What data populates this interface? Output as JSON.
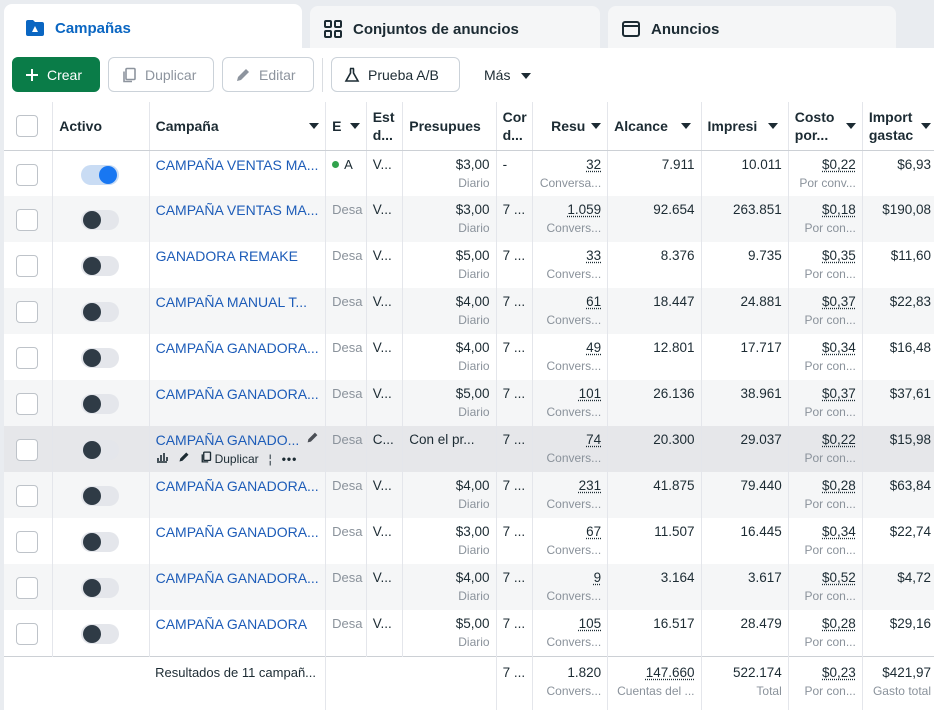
{
  "tabs": [
    {
      "label": "Campañas",
      "icon": "folder-icon"
    },
    {
      "label": "Conjuntos de anuncios",
      "icon": "grid-icon"
    },
    {
      "label": "Anuncios",
      "icon": "ad-window-icon"
    }
  ],
  "toolbar": {
    "create": "Crear",
    "duplicate": "Duplicar",
    "edit": "Editar",
    "ab_test": "Prueba A/B",
    "more": "Más"
  },
  "columns": {
    "active": "Activo",
    "campaign": "Campaña",
    "delivery": "E",
    "strategy": "Est d...",
    "budget": "Presupues",
    "attribution": "Cor d...",
    "results": "Resu",
    "reach": "Alcance",
    "impressions": "Impresi",
    "cost": "Costo por...",
    "spent": "Import gastac"
  },
  "rows": [
    {
      "on": true,
      "name": "CAMPAÑA VENTAS MA...",
      "delivery": "A",
      "strategy": "V...",
      "budget": "$3,00",
      "budget_sub": "Diario",
      "attr": "-",
      "results": "32",
      "results_sub": "Conversa...",
      "reach": "7.911",
      "impressions": "10.011",
      "cost": "$0,22",
      "cost_sub": "Por conv...",
      "spent": "$6,93"
    },
    {
      "on": false,
      "name": "CAMPAÑA VENTAS MA...",
      "delivery": "Desa",
      "strategy": "V...",
      "budget": "$3,00",
      "budget_sub": "Diario",
      "attr": "7 ...",
      "results": "1.059",
      "results_sub": "Convers...",
      "reach": "92.654",
      "impressions": "263.851",
      "cost": "$0,18",
      "cost_sub": "Por con...",
      "spent": "$190,08"
    },
    {
      "on": false,
      "name": "GANADORA REMAKE",
      "delivery": "Desa",
      "strategy": "V...",
      "budget": "$5,00",
      "budget_sub": "Diario",
      "attr": "7 ...",
      "results": "33",
      "results_sub": "Convers...",
      "reach": "8.376",
      "impressions": "9.735",
      "cost": "$0,35",
      "cost_sub": "Por con...",
      "spent": "$11,60"
    },
    {
      "on": false,
      "name": "CAMPAÑA MANUAL T...",
      "delivery": "Desa",
      "strategy": "V...",
      "budget": "$4,00",
      "budget_sub": "Diario",
      "attr": "7 ...",
      "results": "61",
      "results_sub": "Convers...",
      "reach": "18.447",
      "impressions": "24.881",
      "cost": "$0,37",
      "cost_sub": "Por con...",
      "spent": "$22,83"
    },
    {
      "on": false,
      "name": "CAMPAÑA GANADORA...",
      "delivery": "Desa",
      "strategy": "V...",
      "budget": "$4,00",
      "budget_sub": "Diario",
      "attr": "7 ...",
      "results": "49",
      "results_sub": "Convers...",
      "reach": "12.801",
      "impressions": "17.717",
      "cost": "$0,34",
      "cost_sub": "Por con...",
      "spent": "$16,48"
    },
    {
      "on": false,
      "name": "CAMPAÑA GANADORA...",
      "delivery": "Desa",
      "strategy": "V...",
      "budget": "$5,00",
      "budget_sub": "Diario",
      "attr": "7 ...",
      "results": "101",
      "results_sub": "Convers...",
      "reach": "26.136",
      "impressions": "38.961",
      "cost": "$0,37",
      "cost_sub": "Por con...",
      "spent": "$37,61"
    },
    {
      "on": false,
      "name": "CAMPAÑA GANADO...",
      "delivery": "Desa",
      "strategy": "C...",
      "budget": "Con el pr...",
      "budget_sub": "",
      "attr": "7 ...",
      "results": "74",
      "results_sub": "Convers...",
      "reach": "20.300",
      "impressions": "29.037",
      "cost": "$0,22",
      "cost_sub": "Por con...",
      "spent": "$15,98",
      "hover": true
    },
    {
      "on": false,
      "name": "CAMPAÑA GANADORA...",
      "delivery": "Desa",
      "strategy": "V...",
      "budget": "$4,00",
      "budget_sub": "Diario",
      "attr": "7 ...",
      "results": "231",
      "results_sub": "Convers...",
      "reach": "41.875",
      "impressions": "79.440",
      "cost": "$0,28",
      "cost_sub": "Por con...",
      "spent": "$63,84"
    },
    {
      "on": false,
      "name": "CAMPAÑA GANADORA...",
      "delivery": "Desa",
      "strategy": "V...",
      "budget": "$3,00",
      "budget_sub": "Diario",
      "attr": "7 ...",
      "results": "67",
      "results_sub": "Convers...",
      "reach": "11.507",
      "impressions": "16.445",
      "cost": "$0,34",
      "cost_sub": "Por con...",
      "spent": "$22,74"
    },
    {
      "on": false,
      "name": "CAMPAÑA GANADORA...",
      "delivery": "Desa",
      "strategy": "V...",
      "budget": "$4,00",
      "budget_sub": "Diario",
      "attr": "7 ...",
      "results": "9",
      "results_sub": "Convers...",
      "reach": "3.164",
      "impressions": "3.617",
      "cost": "$0,52",
      "cost_sub": "Por con...",
      "spent": "$4,72"
    },
    {
      "on": false,
      "name": "CAMPAÑA GANADORA",
      "delivery": "Desa",
      "strategy": "V...",
      "budget": "$5,00",
      "budget_sub": "Diario",
      "attr": "7 ...",
      "results": "105",
      "results_sub": "Convers...",
      "reach": "16.517",
      "impressions": "28.479",
      "cost": "$0,28",
      "cost_sub": "Por con...",
      "spent": "$29,16"
    }
  ],
  "hover_actions": {
    "duplicate": "Duplicar"
  },
  "totals": {
    "label": "Resultados de 11 campañ...",
    "attr": "7 ...",
    "results": "1.820",
    "results_sub": "Convers...",
    "reach": "147.660",
    "reach_sub": "Cuentas del ...",
    "impressions": "522.174",
    "impressions_sub": "Total",
    "cost": "$0,23",
    "cost_sub": "Por con...",
    "spent": "$421,97",
    "spent_sub": "Gasto total"
  },
  "colors": {
    "accent": "#0a66c2",
    "create": "#0a7c48",
    "link": "#1d5cb8",
    "toggle_on": "#1877f2",
    "status_dot": "#31a24c"
  }
}
